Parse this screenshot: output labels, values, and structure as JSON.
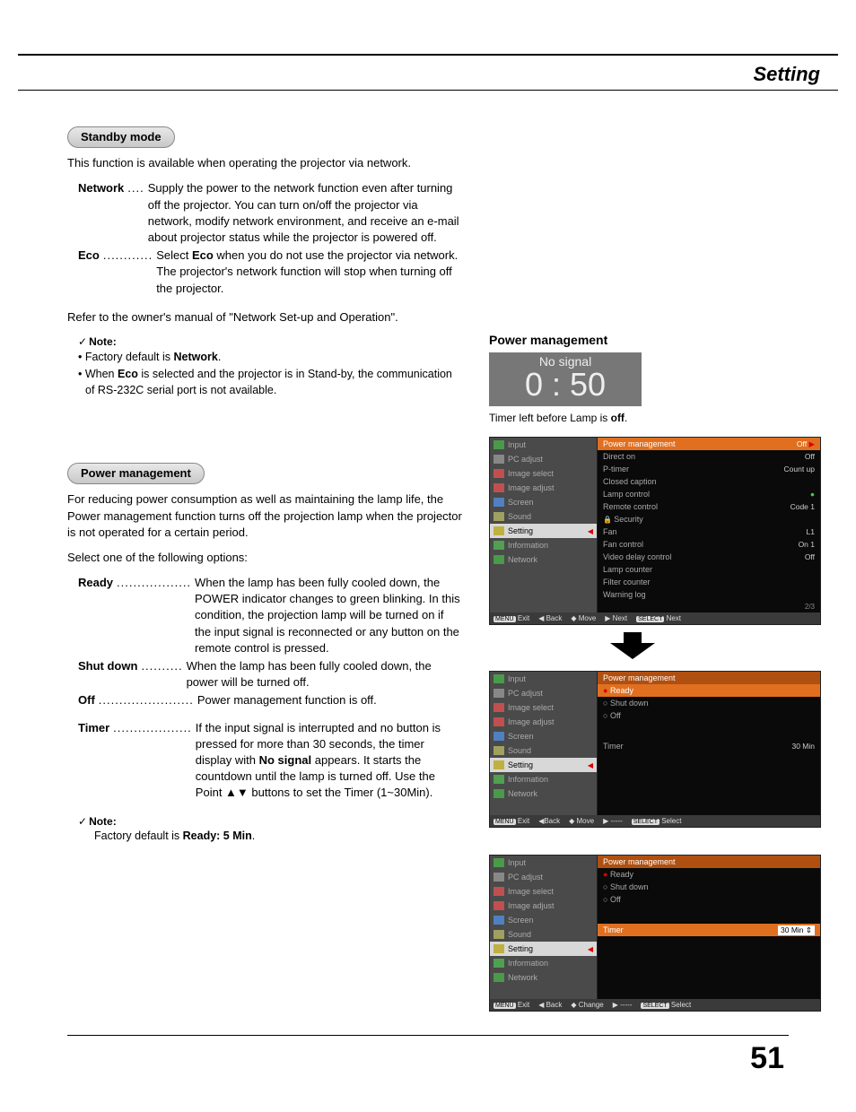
{
  "header": {
    "title": "Setting"
  },
  "page_number": "51",
  "left": {
    "section1": {
      "pill": "Standby mode",
      "intro": "This function is available when operating the projector via network.",
      "items": [
        {
          "term": "Network",
          "dots": "....",
          "body": "Supply the power to the network function even after turning off the projector. You can turn on/off the projector via network, modify network environment, and receive an e-mail about projector status while the projector is powered off."
        },
        {
          "term": "Eco",
          "dots": "............",
          "body_pre": "Select ",
          "body_bold": "Eco",
          "body_post": " when you do not use the projector via network. The projector's network function will stop when turning off the projector."
        }
      ],
      "refer": "Refer to the owner's manual of \"Network Set-up and Operation\".",
      "note_label": "Note:",
      "notes": [
        {
          "pre": "• Factory default is ",
          "bold": "Network",
          "post": "."
        },
        {
          "pre": "• When ",
          "bold": "Eco",
          "post": " is selected and the projector is in Stand-by, the communication of RS-232C serial port is not available."
        }
      ]
    },
    "section2": {
      "pill": "Power management",
      "intro": "For reducing power consumption as well as maintaining the lamp life, the Power management function turns off the projection lamp when the projector is not operated for a certain period.",
      "select": "Select one of the following options:",
      "items": [
        {
          "term": "Ready",
          "dots": "..................",
          "body": "When the lamp has been fully cooled down, the POWER indicator changes to green blinking. In this condition, the projection lamp will be turned on if the input signal is reconnected or any button on the remote control is pressed."
        },
        {
          "term": "Shut down",
          "dots": "..........",
          "body": "When the lamp has been fully cooled down, the power will be turned off."
        },
        {
          "term": "Off",
          "dots": ".......................",
          "body": "Power management function is off."
        }
      ],
      "timer": {
        "term": "Timer",
        "dots": "...................",
        "body_pre": "If the input signal is interrupted and no button is pressed for more than 30 seconds, the timer display with ",
        "body_bold": "No signal",
        "body_post": " appears. It starts the countdown until the lamp is turned off. Use the Point ▲▼ buttons to set the Timer (1~30Min)."
      },
      "note_label": "Note:",
      "note_pre": "Factory default is ",
      "note_bold": "Ready: 5 Min",
      "note_post": "."
    }
  },
  "right": {
    "heading": "Power management",
    "nosignal": {
      "line1": "No signal",
      "line2": "0 : 50"
    },
    "caption_pre": "Timer left before Lamp is ",
    "caption_bold": "off",
    "caption_post": ".",
    "osd_menu": [
      {
        "label": "Input",
        "color": "#4a9a4a"
      },
      {
        "label": "PC adjust",
        "color": "#888888"
      },
      {
        "label": "Image select",
        "color": "#c05050"
      },
      {
        "label": "Image adjust",
        "color": "#c05050"
      },
      {
        "label": "Screen",
        "color": "#5080c0"
      },
      {
        "label": "Sound",
        "color": "#a0a060"
      },
      {
        "label": "Setting",
        "color": "#c0b040",
        "selected": true
      },
      {
        "label": "Information",
        "color": "#50a050"
      },
      {
        "label": "Network",
        "color": "#4a9a4a"
      }
    ],
    "osd1": {
      "rows": [
        {
          "l": "Power management",
          "r": "Off",
          "hl": true,
          "arrow": true
        },
        {
          "l": "Direct on",
          "r": "Off"
        },
        {
          "l": "P-timer",
          "r": "Count up"
        },
        {
          "l": "Closed caption",
          "r": ""
        },
        {
          "l": "Lamp control",
          "r": "●",
          "rcolor": "#4c4"
        },
        {
          "l": "Remote control",
          "r": "Code 1"
        },
        {
          "l": "Security",
          "r": "",
          "lock": true
        },
        {
          "l": "Fan",
          "r": "L1"
        },
        {
          "l": "Fan control",
          "r": "On 1"
        },
        {
          "l": "Video delay control",
          "r": "Off"
        },
        {
          "l": "Lamp counter",
          "r": ""
        },
        {
          "l": "Filter counter",
          "r": ""
        },
        {
          "l": "Warning log",
          "r": ""
        }
      ],
      "page": "2/3",
      "foot": [
        "Exit",
        "◀ Back",
        "◆ Move",
        "▶ Next",
        "Next"
      ]
    },
    "osd2": {
      "title": "Power management",
      "rows": [
        {
          "l": "Ready",
          "hl": true,
          "radio": "sel"
        },
        {
          "l": "Shut down",
          "radio": "o"
        },
        {
          "l": "Off",
          "radio": "o"
        }
      ],
      "timer": {
        "l": "Timer",
        "r": "30 Min"
      },
      "foot": [
        "Exit",
        "◀Back",
        "◆ Move",
        "▶ -----",
        "Select"
      ]
    },
    "osd3": {
      "title": "Power management",
      "rows": [
        {
          "l": "Ready",
          "radio": "sel"
        },
        {
          "l": "Shut down",
          "radio": "o"
        },
        {
          "l": "Off",
          "radio": "o"
        }
      ],
      "timer": {
        "l": "Timer",
        "r": "30 Min",
        "hl": true,
        "spin": true
      },
      "foot": [
        "Exit",
        "◀ Back",
        "◆ Change",
        "▶ -----",
        "Select"
      ]
    }
  },
  "colors": {
    "highlight": "#e07020",
    "osd_left_bg": "#4a4a4a",
    "osd_right_bg": "#0a0a0a",
    "osd_foot_bg": "#3a3a3a"
  }
}
